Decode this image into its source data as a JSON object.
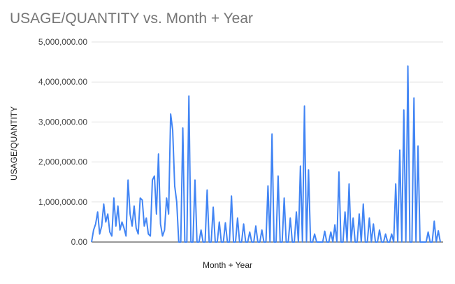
{
  "chart_data": {
    "type": "line",
    "title": "USAGE/QUANTITY vs. Month + Year",
    "xlabel": "Month + Year",
    "ylabel": "USAGE/QUANTITY",
    "ylim": [
      0,
      5000000
    ],
    "yticks": [
      0,
      1000000,
      2000000,
      3000000,
      4000000,
      5000000
    ],
    "ytick_labels": [
      "0.00",
      "1,000,000.00",
      "2,000,000.00",
      "3,000,000.00",
      "4,000,000.00",
      "5,000,000.00"
    ],
    "grid": true,
    "legend": "none",
    "color": "#4285f4",
    "series": [
      {
        "values": [
          0,
          300000,
          450000,
          750000,
          200000,
          400000,
          950000,
          500000,
          700000,
          250000,
          150000,
          1100000,
          400000,
          900000,
          300000,
          500000,
          350000,
          150000,
          1550000,
          700000,
          400000,
          900000,
          350000,
          200000,
          1100000,
          1050000,
          400000,
          600000,
          200000,
          150000,
          1550000,
          1650000,
          700000,
          2200000,
          450000,
          150000,
          300000,
          1100000,
          700000,
          3200000,
          2800000,
          1400000,
          1000000,
          0,
          0,
          2850000,
          0,
          0,
          3650000,
          0,
          0,
          1550000,
          0,
          0,
          300000,
          0,
          0,
          1300000,
          0,
          0,
          870000,
          0,
          0,
          500000,
          0,
          0,
          480000,
          0,
          0,
          1150000,
          0,
          0,
          600000,
          0,
          0,
          450000,
          0,
          0,
          250000,
          0,
          0,
          400000,
          0,
          0,
          300000,
          0,
          0,
          1400000,
          0,
          2700000,
          0,
          0,
          1650000,
          0,
          0,
          1100000,
          0,
          0,
          600000,
          0,
          0,
          750000,
          0,
          1900000,
          0,
          3400000,
          0,
          1800000,
          0,
          0,
          200000,
          0,
          0,
          0,
          0,
          270000,
          0,
          0,
          250000,
          0,
          430000,
          0,
          1750000,
          0,
          0,
          750000,
          0,
          1450000,
          0,
          600000,
          0,
          0,
          700000,
          0,
          950000,
          0,
          0,
          600000,
          0,
          450000,
          0,
          0,
          300000,
          0,
          0,
          200000,
          0,
          0,
          200000,
          0,
          1450000,
          0,
          2300000,
          0,
          3300000,
          0,
          4400000,
          0,
          0,
          3600000,
          0,
          2400000,
          0,
          0,
          0,
          0,
          250000,
          0,
          0,
          520000,
          0,
          280000,
          0
        ]
      }
    ]
  }
}
